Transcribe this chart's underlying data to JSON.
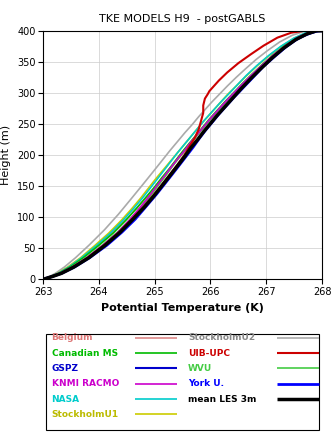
{
  "title": "TKE MODELS H9  - postGABLS",
  "xlabel": "Potential Temperature (K)",
  "ylabel": "Height (m)",
  "xlim": [
    263,
    268
  ],
  "ylim": [
    0,
    400
  ],
  "xticks": [
    263,
    264,
    265,
    266,
    267,
    268
  ],
  "yticks": [
    0,
    50,
    100,
    150,
    200,
    250,
    300,
    350,
    400
  ],
  "series": {
    "StockholmU2": {
      "color": "#aaaaaa",
      "lw": 1.2,
      "T": [
        263.0,
        263.05,
        263.12,
        263.22,
        263.38,
        263.58,
        263.82,
        264.1,
        264.35,
        264.58,
        264.78,
        264.96,
        265.12,
        265.27,
        265.41,
        265.54,
        265.67,
        265.79,
        265.91,
        266.03,
        266.16,
        266.3,
        266.46,
        266.63,
        266.82,
        267.02,
        267.24,
        267.47,
        267.68,
        267.87,
        268.0
      ],
      "Z": [
        0,
        2,
        5,
        10,
        20,
        35,
        55,
        80,
        105,
        130,
        152,
        172,
        190,
        207,
        222,
        236,
        249,
        262,
        274,
        286,
        298,
        311,
        325,
        339,
        354,
        368,
        382,
        393,
        399,
        400,
        400
      ]
    },
    "StockholmU1": {
      "color": "#cccc00",
      "lw": 1.2,
      "T": [
        263.0,
        263.05,
        263.14,
        263.26,
        263.44,
        263.67,
        263.93,
        264.18,
        264.4,
        264.58,
        264.74,
        264.88,
        265.01,
        265.14,
        265.27,
        265.4,
        265.52,
        265.64,
        265.76,
        265.88,
        266.01,
        266.15,
        266.3,
        266.47,
        266.65,
        266.84,
        267.05,
        267.27,
        267.5,
        267.72,
        267.9,
        268.0
      ],
      "Z": [
        0,
        2,
        5,
        10,
        20,
        35,
        55,
        75,
        95,
        113,
        130,
        146,
        161,
        175,
        189,
        203,
        216,
        229,
        242,
        255,
        268,
        282,
        297,
        312,
        328,
        344,
        360,
        375,
        388,
        397,
        400,
        400
      ]
    },
    "NASA": {
      "color": "#00cccc",
      "lw": 1.2,
      "T": [
        263.0,
        263.05,
        263.14,
        263.27,
        263.46,
        263.69,
        263.96,
        264.21,
        264.43,
        264.62,
        264.78,
        264.92,
        265.05,
        265.17,
        265.29,
        265.41,
        265.53,
        265.65,
        265.77,
        265.89,
        266.02,
        266.16,
        266.31,
        266.47,
        266.64,
        266.83,
        267.04,
        267.26,
        267.49,
        267.71,
        267.9,
        268.0
      ],
      "Z": [
        0,
        2,
        5,
        10,
        20,
        35,
        55,
        75,
        95,
        114,
        131,
        147,
        162,
        176,
        190,
        204,
        217,
        230,
        243,
        256,
        269,
        283,
        297,
        312,
        328,
        344,
        360,
        375,
        388,
        397,
        400,
        400
      ]
    },
    "Canadian MS": {
      "color": "#00bb00",
      "lw": 1.2,
      "T": [
        263.0,
        263.05,
        263.15,
        263.28,
        263.48,
        263.72,
        264.0,
        264.26,
        264.49,
        264.68,
        264.85,
        265.0,
        265.13,
        265.26,
        265.38,
        265.5,
        265.62,
        265.74,
        265.86,
        265.98,
        266.11,
        266.25,
        266.4,
        266.56,
        266.73,
        266.92,
        267.12,
        267.33,
        267.56,
        267.76,
        267.92,
        268.0
      ],
      "Z": [
        0,
        2,
        5,
        10,
        20,
        35,
        55,
        75,
        96,
        115,
        133,
        149,
        164,
        178,
        192,
        206,
        219,
        232,
        245,
        258,
        271,
        285,
        299,
        314,
        329,
        345,
        361,
        376,
        389,
        397,
        400,
        400
      ]
    },
    "KNMI RACMO": {
      "color": "#cc00cc",
      "lw": 1.2,
      "T": [
        263.0,
        263.05,
        263.15,
        263.3,
        263.52,
        263.78,
        264.07,
        264.33,
        264.55,
        264.74,
        264.9,
        265.04,
        265.17,
        265.29,
        265.41,
        265.53,
        265.64,
        265.76,
        265.88,
        266.0,
        266.13,
        266.27,
        266.42,
        266.58,
        266.75,
        266.94,
        267.14,
        267.36,
        267.58,
        267.78,
        267.93,
        268.0
      ],
      "Z": [
        0,
        2,
        5,
        10,
        20,
        35,
        55,
        75,
        96,
        116,
        134,
        151,
        166,
        180,
        194,
        207,
        220,
        233,
        246,
        259,
        272,
        286,
        300,
        315,
        330,
        346,
        362,
        377,
        390,
        398,
        400,
        400
      ]
    },
    "Belgium": {
      "color": "#dd8888",
      "lw": 1.2,
      "T": [
        263.0,
        263.05,
        263.14,
        263.27,
        263.46,
        263.7,
        263.98,
        264.24,
        264.47,
        264.67,
        264.84,
        264.99,
        265.12,
        265.25,
        265.37,
        265.49,
        265.61,
        265.73,
        265.85,
        265.97,
        266.1,
        266.24,
        266.39,
        266.55,
        266.72,
        266.9,
        267.1,
        267.32,
        267.54,
        267.74,
        267.91,
        268.0
      ],
      "Z": [
        0,
        2,
        5,
        10,
        20,
        35,
        55,
        75,
        95,
        114,
        131,
        147,
        162,
        176,
        190,
        203,
        216,
        229,
        242,
        255,
        268,
        282,
        296,
        311,
        326,
        342,
        358,
        373,
        387,
        396,
        400,
        400
      ]
    },
    "WVU": {
      "color": "#44cc44",
      "lw": 1.2,
      "T": [
        263.0,
        263.06,
        263.16,
        263.3,
        263.51,
        263.77,
        264.06,
        264.33,
        264.56,
        264.75,
        264.92,
        265.06,
        265.19,
        265.31,
        265.43,
        265.55,
        265.67,
        265.78,
        265.9,
        266.02,
        266.15,
        266.29,
        266.44,
        266.6,
        266.77,
        266.96,
        267.16,
        267.38,
        267.6,
        267.8,
        267.94,
        268.0
      ],
      "Z": [
        0,
        2,
        5,
        10,
        20,
        35,
        55,
        76,
        97,
        116,
        134,
        151,
        166,
        181,
        195,
        208,
        221,
        234,
        247,
        260,
        273,
        287,
        301,
        316,
        331,
        347,
        363,
        378,
        391,
        398,
        400,
        400
      ]
    },
    "GSPZ": {
      "color": "#0000cc",
      "lw": 1.5,
      "T": [
        263.0,
        263.06,
        263.17,
        263.33,
        263.55,
        263.82,
        264.12,
        264.39,
        264.62,
        264.82,
        264.99,
        265.14,
        265.27,
        265.4,
        265.52,
        265.64,
        265.75,
        265.87,
        265.99,
        266.12,
        266.25,
        266.39,
        266.54,
        266.7,
        266.88,
        267.07,
        267.27,
        267.49,
        267.7,
        267.89,
        268.0
      ],
      "Z": [
        0,
        2,
        5,
        10,
        20,
        35,
        55,
        76,
        97,
        117,
        135,
        152,
        168,
        182,
        196,
        210,
        223,
        236,
        249,
        263,
        277,
        291,
        306,
        321,
        337,
        353,
        369,
        383,
        393,
        399,
        400
      ]
    },
    "UIB-UPC": {
      "color": "#cc0000",
      "lw": 1.5,
      "T": [
        263.0,
        263.06,
        263.17,
        263.32,
        263.54,
        263.8,
        264.09,
        264.36,
        264.59,
        264.8,
        264.98,
        265.14,
        265.28,
        265.41,
        265.53,
        265.63,
        265.72,
        265.79,
        265.83,
        265.87,
        265.87,
        265.9,
        265.95,
        265.98,
        266.05,
        266.15,
        266.3,
        266.5,
        266.72,
        266.95,
        267.2,
        267.45,
        267.68,
        267.88,
        268.0
      ],
      "Z": [
        0,
        2,
        5,
        10,
        20,
        35,
        55,
        76,
        97,
        117,
        136,
        154,
        170,
        185,
        200,
        215,
        228,
        242,
        255,
        268,
        280,
        291,
        298,
        303,
        310,
        320,
        333,
        348,
        362,
        376,
        389,
        397,
        400,
        400,
        400
      ]
    },
    "York U.": {
      "color": "#0000ff",
      "lw": 2.0,
      "T": [
        263.0,
        263.06,
        263.17,
        263.33,
        263.56,
        263.83,
        264.14,
        264.41,
        264.65,
        264.85,
        265.03,
        265.18,
        265.32,
        265.45,
        265.57,
        265.69,
        265.8,
        265.91,
        266.03,
        266.15,
        266.29,
        266.43,
        266.59,
        266.76,
        266.94,
        267.14,
        267.35,
        267.57,
        267.77,
        267.93,
        268.0
      ],
      "Z": [
        0,
        2,
        5,
        10,
        20,
        35,
        55,
        76,
        97,
        118,
        137,
        154,
        170,
        185,
        199,
        213,
        227,
        240,
        253,
        266,
        280,
        294,
        309,
        325,
        342,
        358,
        374,
        388,
        396,
        400,
        400
      ]
    },
    "mean LES 3m": {
      "color": "#000000",
      "lw": 2.5,
      "T": [
        263.0,
        263.06,
        263.17,
        263.33,
        263.55,
        263.82,
        264.11,
        264.38,
        264.61,
        264.82,
        265.0,
        265.15,
        265.29,
        265.42,
        265.54,
        265.65,
        265.77,
        265.88,
        266.0,
        266.12,
        266.26,
        266.4,
        266.55,
        266.72,
        266.9,
        267.1,
        267.31,
        267.53,
        267.73,
        267.9,
        268.0
      ],
      "Z": [
        0,
        2,
        5,
        10,
        20,
        35,
        55,
        76,
        97,
        117,
        136,
        153,
        169,
        184,
        198,
        212,
        225,
        238,
        251,
        264,
        278,
        292,
        307,
        323,
        339,
        356,
        372,
        386,
        395,
        400,
        400
      ]
    }
  },
  "legend_left": [
    {
      "label": "Belgium",
      "color": "#dd8888",
      "lw": 1.2,
      "text_color": "#dd7777"
    },
    {
      "label": "Canadian MS",
      "color": "#00bb00",
      "lw": 1.2,
      "text_color": "#00bb00"
    },
    {
      "label": "GSPZ",
      "color": "#0000cc",
      "lw": 1.5,
      "text_color": "#0000cc"
    },
    {
      "label": "KNMI RACMO",
      "color": "#cc00cc",
      "lw": 1.2,
      "text_color": "#cc00cc"
    },
    {
      "label": "NASA",
      "color": "#00cccc",
      "lw": 1.2,
      "text_color": "#00cccc"
    },
    {
      "label": "StockholmU1",
      "color": "#cccc00",
      "lw": 1.2,
      "text_color": "#bbbb00"
    }
  ],
  "legend_right": [
    {
      "label": "StockholmU2",
      "color": "#aaaaaa",
      "lw": 1.2,
      "text_color": "#888888"
    },
    {
      "label": "UIB-UPC",
      "color": "#cc0000",
      "lw": 1.5,
      "text_color": "#cc0000"
    },
    {
      "label": "WVU",
      "color": "#44cc44",
      "lw": 1.2,
      "text_color": "#44cc44"
    },
    {
      "label": "York U.",
      "color": "#0000ff",
      "lw": 2.0,
      "text_color": "#0000ff"
    },
    {
      "label": "mean LES 3m",
      "color": "#000000",
      "lw": 2.5,
      "text_color": "#000000"
    }
  ]
}
